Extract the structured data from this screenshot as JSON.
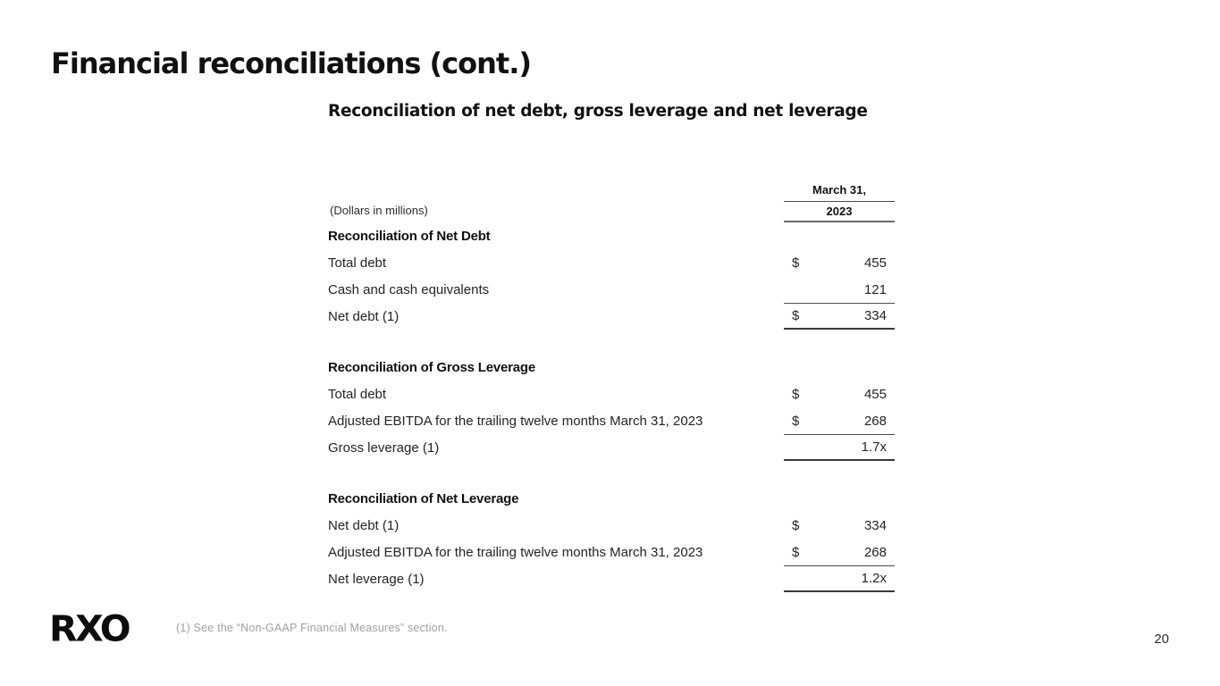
{
  "slide": {
    "title": "Financial reconciliations (cont.)",
    "subtitle": "Reconciliation of net debt, gross leverage and net leverage",
    "logo_text": "RXO",
    "footnote": "(1) See the “Non-GAAP Financial Measures” section.",
    "page_number": "20"
  },
  "table": {
    "units_label": "(Dollars in millions)",
    "column_header": {
      "line1": "March 31,",
      "line2": "2023"
    },
    "sections": [
      {
        "heading": "Reconciliation of Net Debt",
        "rows": [
          {
            "label": "Total debt",
            "currency": "$",
            "value": "455",
            "top_rule": false,
            "bottom_rule": false
          },
          {
            "label": "Cash and cash equivalents",
            "currency": "",
            "value": "121",
            "top_rule": false,
            "bottom_rule": false
          },
          {
            "label": "Net debt (1)",
            "currency": "$",
            "value": "334",
            "top_rule": true,
            "bottom_rule": true
          }
        ]
      },
      {
        "heading": "Reconciliation of Gross Leverage",
        "rows": [
          {
            "label": "Total debt",
            "currency": "$",
            "value": "455",
            "top_rule": false,
            "bottom_rule": false
          },
          {
            "label": "Adjusted EBITDA for the trailing twelve months March 31, 2023",
            "currency": "$",
            "value": "268",
            "top_rule": false,
            "bottom_rule": false
          },
          {
            "label": "Gross leverage (1)",
            "currency": "",
            "value": "1.7x",
            "top_rule": true,
            "bottom_rule": true
          }
        ]
      },
      {
        "heading": "Reconciliation of Net Leverage",
        "rows": [
          {
            "label": "Net debt (1)",
            "currency": "$",
            "value": "334",
            "top_rule": false,
            "bottom_rule": false
          },
          {
            "label": "Adjusted EBITDA for the trailing twelve months March 31, 2023",
            "currency": "$",
            "value": "268",
            "top_rule": false,
            "bottom_rule": false
          },
          {
            "label": "Net leverage (1)",
            "currency": "",
            "value": "1.2x",
            "top_rule": true,
            "bottom_rule": true
          }
        ]
      }
    ]
  },
  "colors": {
    "text_primary": "#111111",
    "rule_dark": "#3a3a3a",
    "rule_light": "#6a6a6a",
    "footnote_gray": "#a0a0a0",
    "background": "#ffffff"
  }
}
